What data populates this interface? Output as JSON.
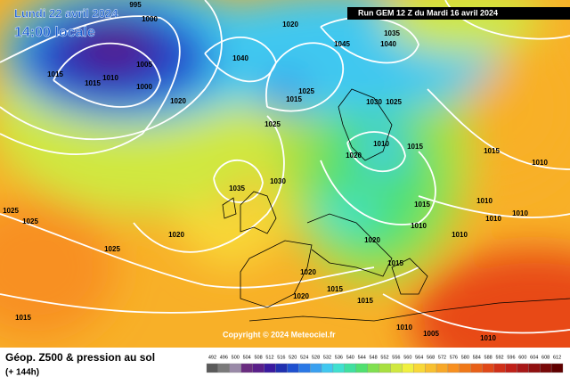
{
  "header": {
    "date": "Lundi 22 avril 2024",
    "time": "14:00 locale",
    "run": "Run GEM 12 Z du Mardi 16 avril 2024"
  },
  "copyright": "Copyright © 2024 Meteociel.fr",
  "footer": {
    "title": "Géop. Z500 & pression au sol",
    "lead": "(+ 144h)"
  },
  "isobar_labels": [
    "995",
    "1000",
    "1005",
    "1000",
    "1010",
    "1015",
    "1015",
    "1020",
    "1040",
    "1020",
    "1045",
    "1035",
    "1040",
    "1025",
    "1015",
    "1025",
    "1030",
    "1025",
    "1010",
    "1015",
    "1020",
    "1035",
    "1030",
    "1020",
    "1025",
    "1025",
    "1025",
    "1015",
    "1015",
    "1010",
    "1010",
    "1015",
    "1010",
    "1010",
    "1010",
    "1010",
    "1020",
    "1015",
    "1020",
    "1020",
    "1015",
    "1015",
    "1010",
    "1005",
    "1010"
  ],
  "colorbar": {
    "ticks": [
      492,
      496,
      500,
      504,
      508,
      512,
      516,
      520,
      524,
      528,
      532,
      536,
      540,
      544,
      548,
      552,
      556,
      560,
      564,
      568,
      572,
      576,
      580,
      584,
      588,
      592,
      596,
      600,
      604,
      608,
      612
    ],
    "colors": [
      "#5a5a5a",
      "#7a7a7a",
      "#9a8aa8",
      "#6a2c80",
      "#5a1f8a",
      "#3a1aa0",
      "#2030b0",
      "#1f50d0",
      "#2a78e6",
      "#3aa0f0",
      "#40c8f0",
      "#40e0d0",
      "#40e0a0",
      "#50e070",
      "#80e050",
      "#a8e040",
      "#d0e840",
      "#f0f040",
      "#f8d838",
      "#f8c030",
      "#f8a828",
      "#f89020",
      "#f07818",
      "#e86018",
      "#e04818",
      "#d03018",
      "#c02018",
      "#a81818",
      "#901010",
      "#780808",
      "#600000"
    ]
  }
}
